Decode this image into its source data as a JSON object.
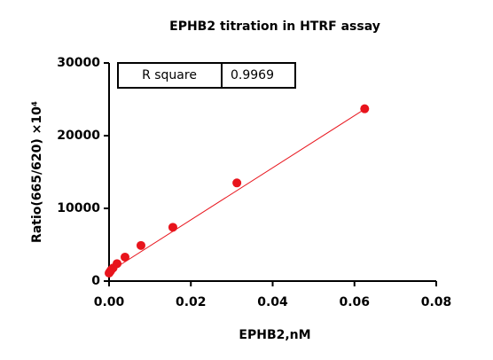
{
  "chart_data": {
    "type": "scatter",
    "title": "EPHB2 titration in HTRF assay",
    "x_label": "EPHB2,nM",
    "y_label": "Ratio(665/620) ×10⁴",
    "x": [
      0,
      0.00024,
      0.00049,
      0.00098,
      0.00195,
      0.0039,
      0.0078,
      0.0156,
      0.03125,
      0.0625
    ],
    "values": [
      1100,
      1300,
      1500,
      1800,
      2400,
      3300,
      4900,
      7400,
      13500,
      23700
    ],
    "color": "#e8141c",
    "fit": {
      "x": [
        0,
        0.0625
      ],
      "values": [
        1250,
        23650
      ],
      "color": "#e8141c"
    },
    "inset_table": [
      "R square",
      "0.9969"
    ],
    "xlim": [
      0,
      0.08
    ],
    "xticks": [
      {
        "value": 0,
        "label": "0.00"
      },
      {
        "value": 0.02,
        "label": "0.02"
      },
      {
        "value": 0.04,
        "label": "0.04"
      },
      {
        "value": 0.06,
        "label": "0.06"
      },
      {
        "value": 0.08,
        "label": "0.08"
      }
    ],
    "ylim": [
      0,
      30000
    ],
    "yticks": [
      0,
      10000,
      20000,
      30000
    ]
  }
}
